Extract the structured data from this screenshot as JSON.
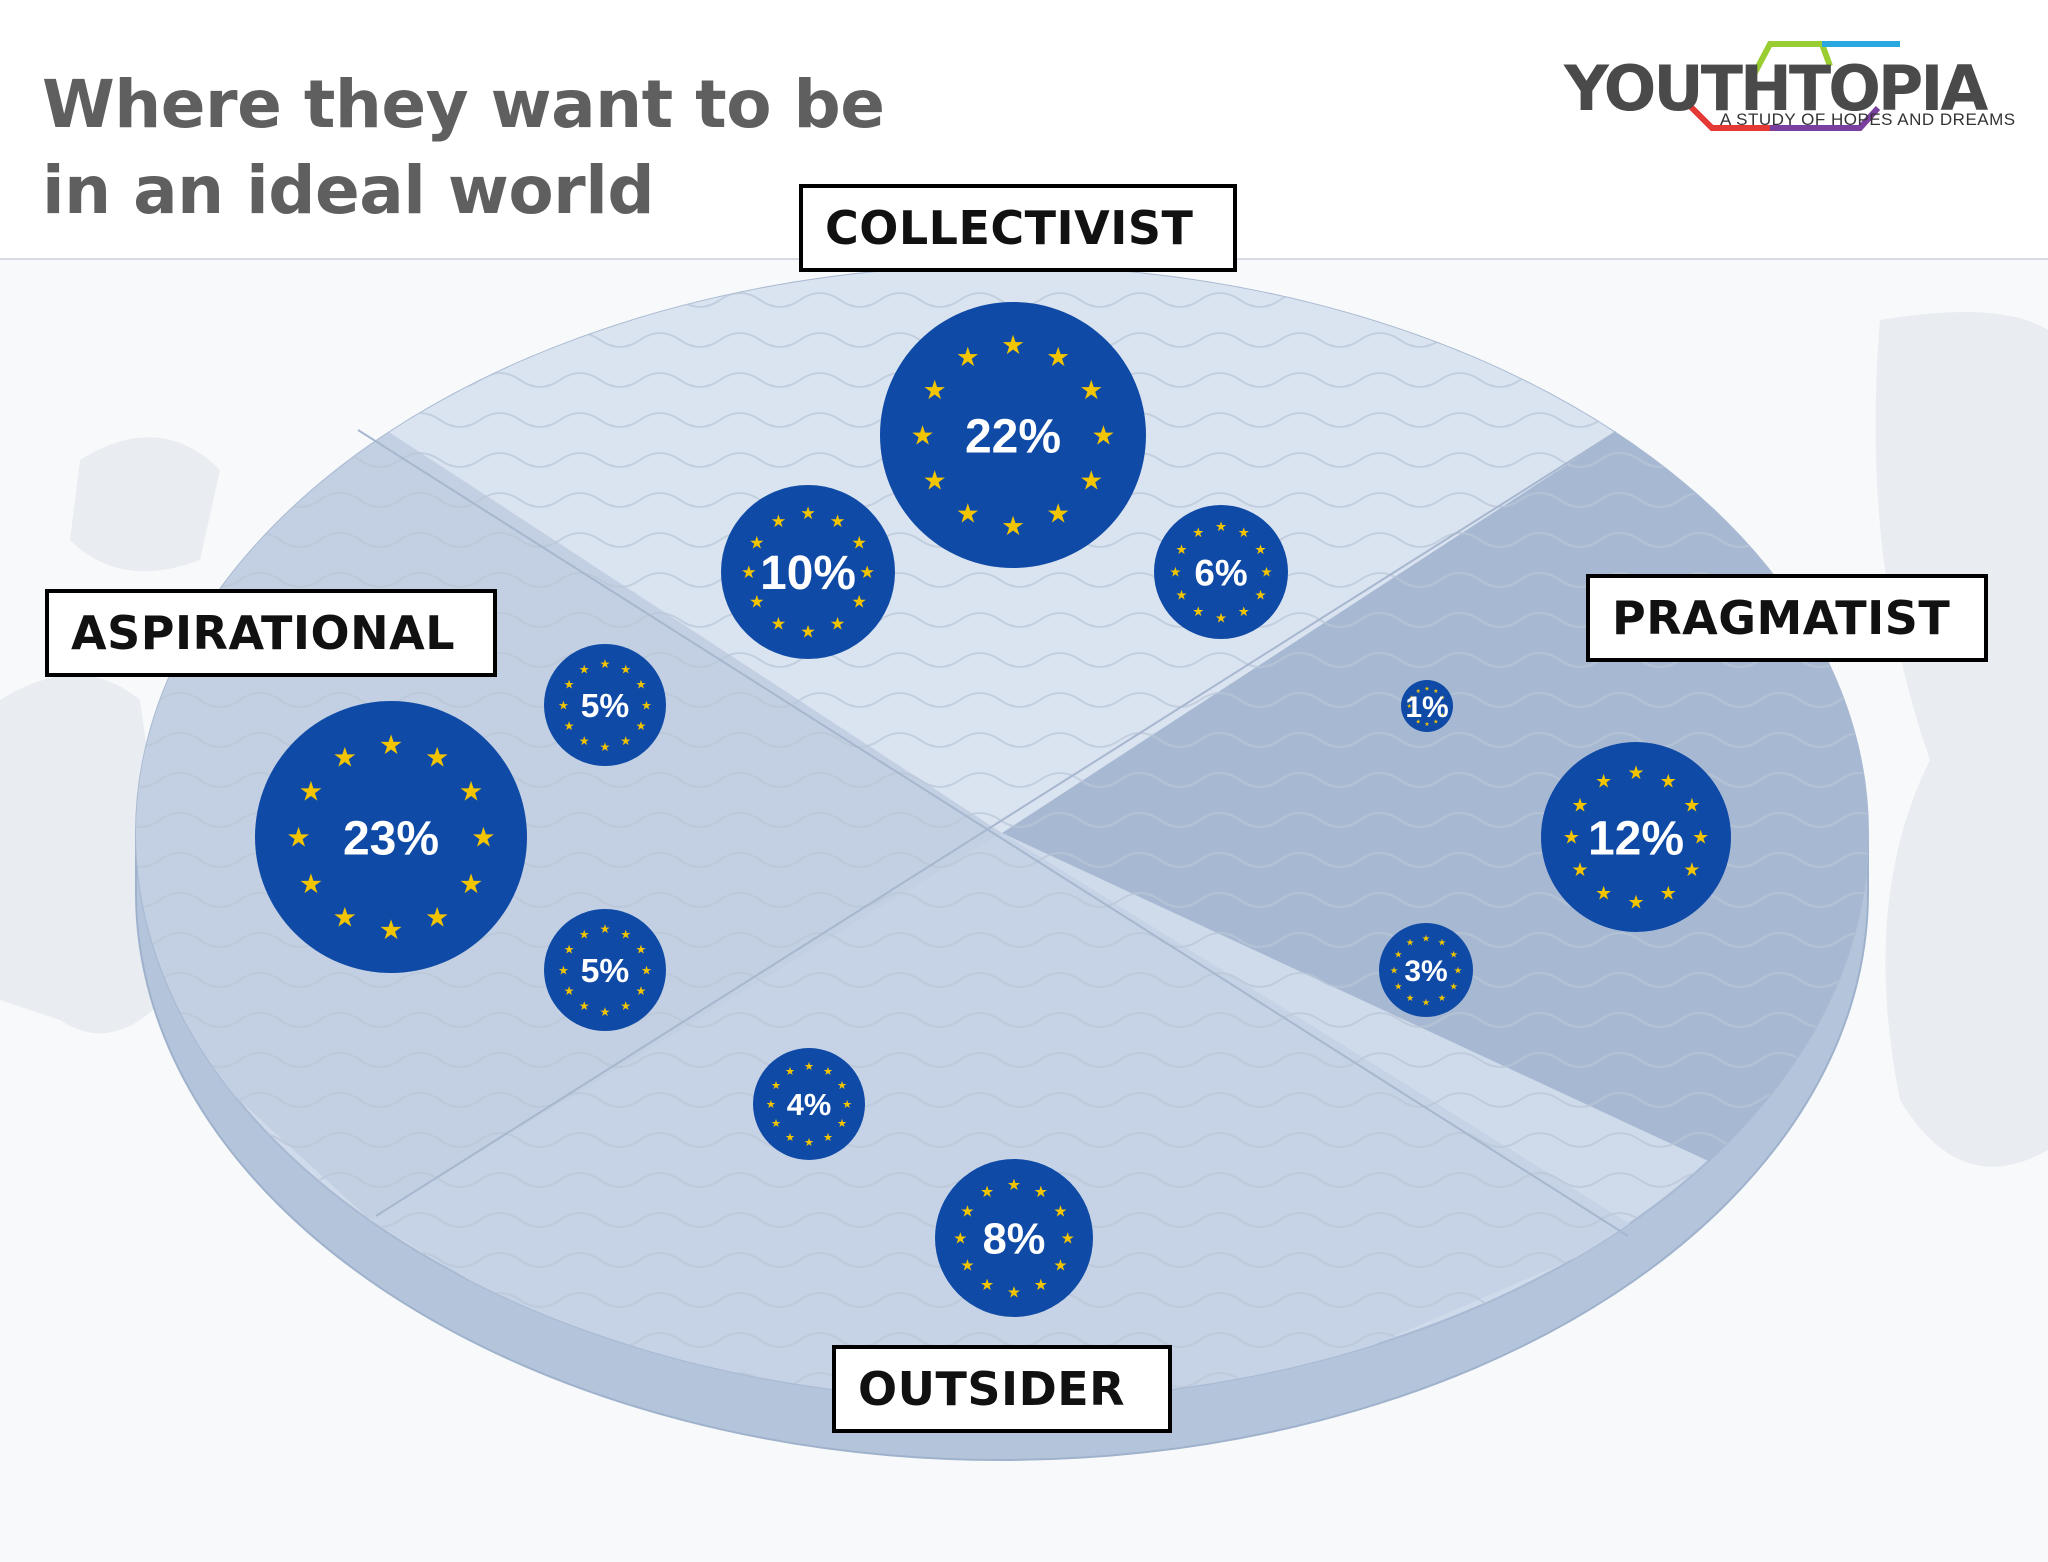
{
  "title_line1": "Where they want to be",
  "title_line2": "in an ideal world",
  "logo": {
    "text": "YOUTHTOPIA",
    "tagline": "A STUDY OF HOPES AND DREAMS"
  },
  "segments": {
    "collectivist": "COLLECTIVIST",
    "aspirational": "ASPIRATIONAL",
    "pragmatist": "PRAGMATIST",
    "outsider": "OUTSIDER"
  },
  "colors": {
    "bubble": "#0f4aa6",
    "star": "#f2c500",
    "platter": "#c9d5e6",
    "title": "#5f5f5f"
  },
  "bubbles": [
    {
      "label": "22%",
      "value": 22
    },
    {
      "label": "10%",
      "value": 10
    },
    {
      "label": "6%",
      "value": 6
    },
    {
      "label": "5%",
      "value": 5
    },
    {
      "label": "23%",
      "value": 23
    },
    {
      "label": "5%",
      "value": 5
    },
    {
      "label": "1%",
      "value": 1
    },
    {
      "label": "12%",
      "value": 12
    },
    {
      "label": "3%",
      "value": 3
    },
    {
      "label": "4%",
      "value": 4
    },
    {
      "label": "8%",
      "value": 8
    }
  ]
}
